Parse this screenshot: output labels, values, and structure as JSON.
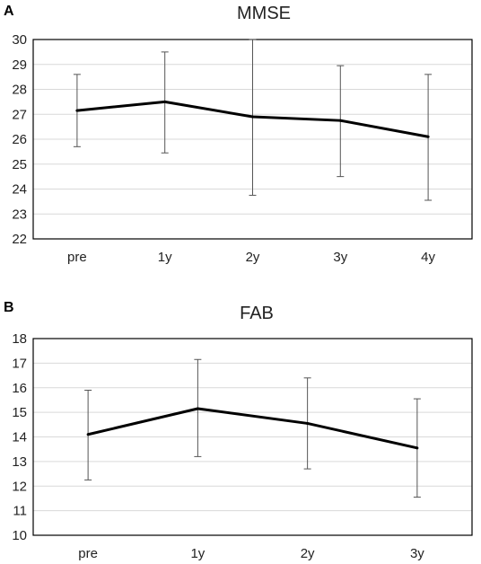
{
  "chart_data": [
    {
      "panel_letter": "A",
      "type": "line",
      "title": "MMSE",
      "categories": [
        "pre",
        "1y",
        "2y",
        "3y",
        "4y"
      ],
      "values": [
        27.15,
        27.5,
        26.9,
        26.75,
        26.1
      ],
      "error_low": [
        25.7,
        25.45,
        23.75,
        24.5,
        23.55
      ],
      "error_high": [
        28.6,
        29.5,
        30.0,
        28.95,
        28.6
      ],
      "ylim": [
        22,
        30
      ],
      "yticks": [
        22,
        23,
        24,
        25,
        26,
        27,
        28,
        29,
        30
      ],
      "grid": true,
      "line_color": "#000000",
      "error_bar_color": "#555555"
    },
    {
      "panel_letter": "B",
      "type": "line",
      "title": "FAB",
      "categories": [
        "pre",
        "1y",
        "2y",
        "3y"
      ],
      "values": [
        14.1,
        15.15,
        14.55,
        13.55
      ],
      "error_low": [
        12.25,
        13.2,
        12.7,
        11.55
      ],
      "error_high": [
        15.9,
        17.15,
        16.4,
        15.55
      ],
      "ylim": [
        10,
        18
      ],
      "yticks": [
        10,
        11,
        12,
        13,
        14,
        15,
        16,
        17,
        18
      ],
      "grid": true,
      "line_color": "#000000",
      "error_bar_color": "#555555"
    }
  ]
}
